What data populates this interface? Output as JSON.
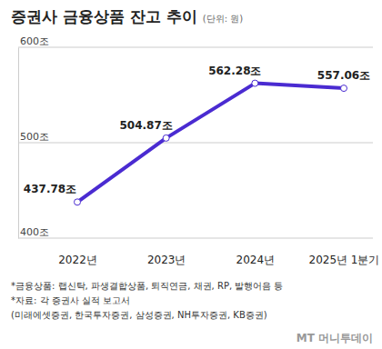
{
  "chart_data": {
    "type": "line",
    "title": "증권사 금융상품 잔고 추이",
    "subtitle": "(단위: 원)",
    "categories": [
      "2022년",
      "2023년",
      "2024년",
      "2025년 1분기"
    ],
    "values": [
      437.78,
      504.87,
      562.28,
      557.06
    ],
    "value_labels": [
      "437.78조",
      "504.87조",
      "562.28조",
      "557.06조"
    ],
    "color": "#4a2bd1",
    "marker": "circle",
    "data_labels": true,
    "grid": true,
    "ylim": [
      400,
      600
    ],
    "yticks": [
      {
        "value": 400,
        "label": "400조"
      },
      {
        "value": 500,
        "label": "500조"
      },
      {
        "value": 600,
        "label": "600조"
      }
    ],
    "notes": [
      "*금융상품: 랩신탁, 파생결합상품, 퇴직연금, 채권, RP, 발행어음 등",
      "*자료: 각 증권사 실적 보고서",
      "(미래에셋증권, 한국투자증권, 삼성증권, NH투자증권, KB증권)"
    ],
    "logo": "MT 머니투데이"
  }
}
